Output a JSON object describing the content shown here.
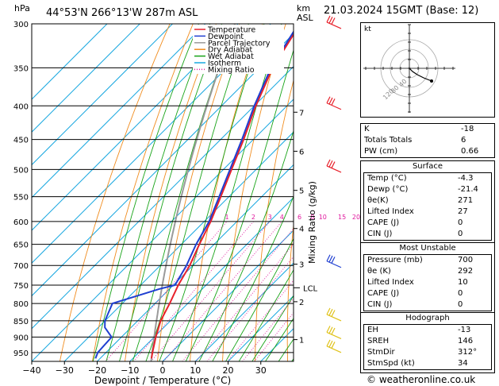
{
  "header": {
    "location": "44°53'N 266°13'W 287m ASL",
    "datetime": "21.03.2024 15GMT (Base: 12)",
    "ylabel_left": "hPa",
    "ylabel_right_km": "km",
    "ylabel_right_asl": "ASL",
    "mixing_ratio_label": "Mixing Ratio (g/kg)",
    "xlabel": "Dewpoint / Temperature (°C)",
    "copyright": "© weatheronline.co.uk",
    "hodo_label": "kt"
  },
  "legend": [
    {
      "label": "Temperature",
      "color": "#e8212b",
      "style": "solid"
    },
    {
      "label": "Dewpoint",
      "color": "#1f3fd1",
      "style": "solid"
    },
    {
      "label": "Parcel Trajectory",
      "color": "#9a9a9a",
      "style": "solid"
    },
    {
      "label": "Dry Adiabat",
      "color": "#f08c1e",
      "style": "solid"
    },
    {
      "label": "Wet Adiabat",
      "color": "#17a317",
      "style": "solid"
    },
    {
      "label": "Isotherm",
      "color": "#19a8e0",
      "style": "solid"
    },
    {
      "label": "Mixing Ratio",
      "color": "#e0199e",
      "style": "dotted"
    }
  ],
  "chart_data": {
    "type": "line",
    "title": "44°53'N 266°13'W 287m ASL",
    "xlabel": "Dewpoint / Temperature (°C)",
    "ylabel": "hPa",
    "xlim": [
      -40,
      40
    ],
    "ylim": [
      980,
      300
    ],
    "x_ticks": [
      "−40",
      "−30",
      "−20",
      "−10",
      "0",
      "10",
      "20",
      "30"
    ],
    "pressure_levels": [
      300,
      350,
      400,
      450,
      500,
      550,
      600,
      650,
      700,
      750,
      800,
      850,
      900,
      950
    ],
    "km_ticks": [
      {
        "km": "1",
        "p": 908
      },
      {
        "km": "2",
        "p": 795
      },
      {
        "km": "3",
        "p": 697
      },
      {
        "km": "4",
        "p": 615
      },
      {
        "km": "5",
        "p": 538
      },
      {
        "km": "6",
        "p": 469
      },
      {
        "km": "7",
        "p": 409
      }
    ],
    "lcl": {
      "label": "LCL",
      "p": 757
    },
    "mixing_ratio_labels": [
      "1",
      "2",
      "3",
      "4",
      "6",
      "8",
      "10",
      "15",
      "20",
      "25"
    ],
    "series": [
      {
        "name": "Temperature",
        "color": "#e8212b",
        "points": [
          [
            970,
            -4.3
          ],
          [
            950,
            -5.8
          ],
          [
            900,
            -9.5
          ],
          [
            850,
            -13
          ],
          [
            800,
            -15.5
          ],
          [
            750,
            -18.5
          ],
          [
            700,
            -21
          ],
          [
            650,
            -24.5
          ],
          [
            600,
            -28
          ],
          [
            550,
            -32.5
          ],
          [
            500,
            -37.5
          ],
          [
            450,
            -43
          ],
          [
            400,
            -49.5
          ],
          [
            350,
            -56
          ],
          [
            300,
            -61
          ]
        ]
      },
      {
        "name": "Dewpoint",
        "color": "#1f3fd1",
        "points": [
          [
            970,
            -21.4
          ],
          [
            950,
            -22.5
          ],
          [
            900,
            -23
          ],
          [
            870,
            -28
          ],
          [
            850,
            -30
          ],
          [
            800,
            -33
          ],
          [
            760,
            -23
          ],
          [
            750,
            -19.5
          ],
          [
            700,
            -22
          ],
          [
            650,
            -25.5
          ],
          [
            600,
            -28.5
          ],
          [
            550,
            -33
          ],
          [
            500,
            -38
          ],
          [
            450,
            -43.5
          ],
          [
            400,
            -50
          ],
          [
            350,
            -56.5
          ],
          [
            300,
            -61.5
          ]
        ]
      }
    ]
  },
  "indices": {
    "rows": [
      {
        "label": "K",
        "value": "-18"
      },
      {
        "label": "Totals Totals",
        "value": "6"
      },
      {
        "label": "PW (cm)",
        "value": "0.66"
      }
    ]
  },
  "surface": {
    "title": "Surface",
    "rows": [
      {
        "label": "Temp (°C)",
        "value": "-4.3"
      },
      {
        "label": "Dewp (°C)",
        "value": "-21.4"
      },
      {
        "label": "θe(K)",
        "value": "271"
      },
      {
        "label": "Lifted Index",
        "value": "27"
      },
      {
        "label": "CAPE (J)",
        "value": "0"
      },
      {
        "label": "CIN (J)",
        "value": "0"
      }
    ]
  },
  "most_unstable": {
    "title": "Most Unstable",
    "rows": [
      {
        "label": "Pressure (mb)",
        "value": "700"
      },
      {
        "label": "θe (K)",
        "value": "292"
      },
      {
        "label": "Lifted Index",
        "value": "10"
      },
      {
        "label": "CAPE (J)",
        "value": "0"
      },
      {
        "label": "CIN (J)",
        "value": "0"
      }
    ]
  },
  "hodograph": {
    "title": "Hodograph",
    "rows": [
      {
        "label": "EH",
        "value": "-13"
      },
      {
        "label": "SREH",
        "value": "146"
      },
      {
        "label": "StmDir",
        "value": "312°"
      },
      {
        "label": "StmSpd (kt)",
        "value": "34"
      }
    ],
    "ring_labels": [
      "40",
      "80",
      "120"
    ]
  }
}
